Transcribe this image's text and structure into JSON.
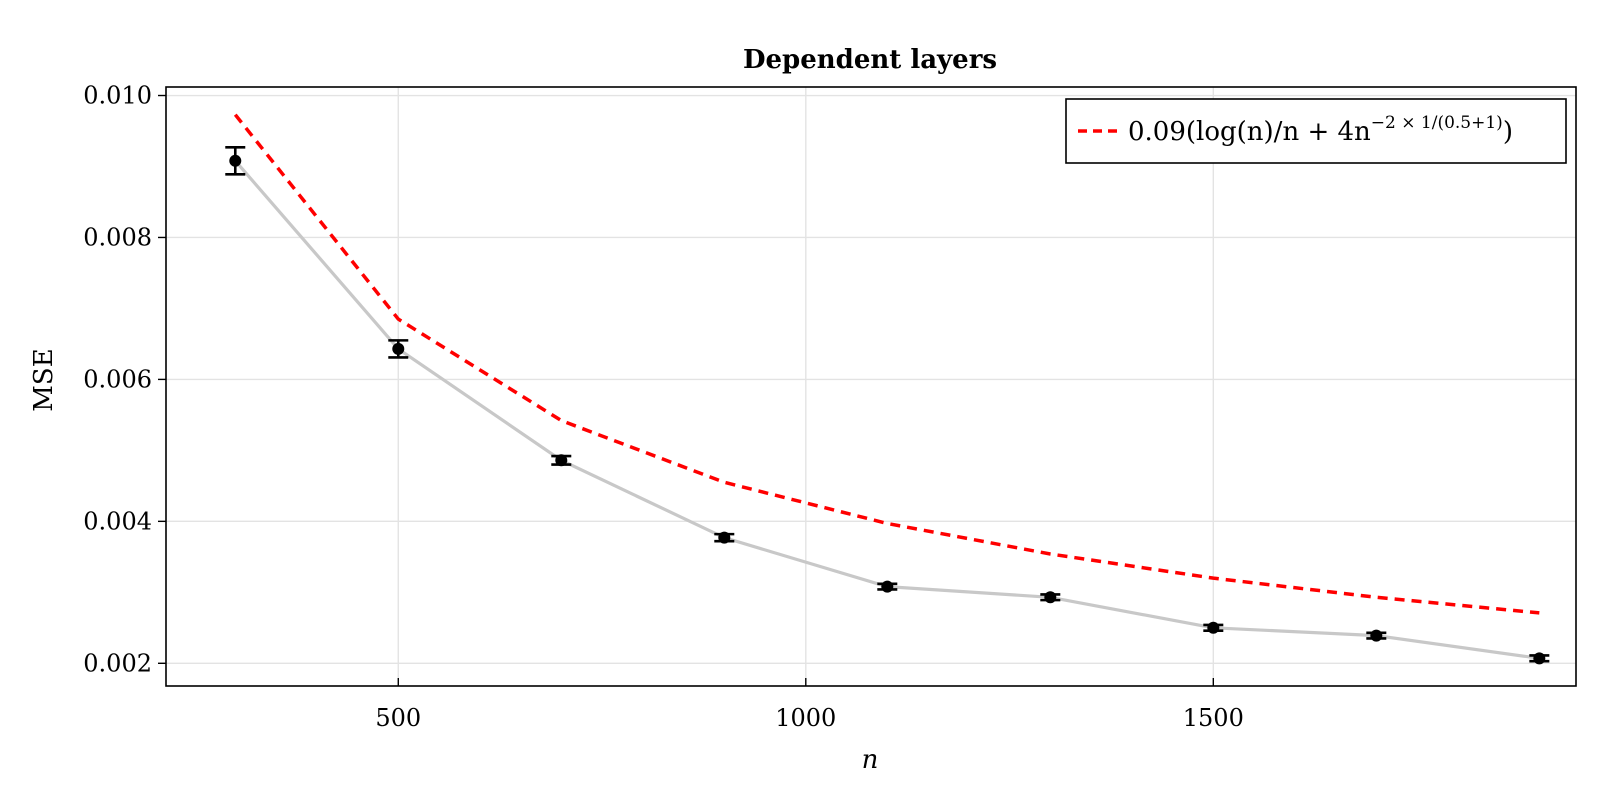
{
  "chart_data": {
    "type": "line",
    "title": "Dependent layers",
    "xlabel": "n",
    "ylabel": "MSE",
    "xlim": [
      215,
      1945
    ],
    "ylim": [
      0.00168,
      0.01012
    ],
    "xticks": [
      500,
      1000,
      1500
    ],
    "xtick_labels": [
      "500",
      "1000",
      "1500"
    ],
    "yticks": [
      0.002,
      0.004,
      0.006,
      0.008,
      0.01
    ],
    "ytick_labels": [
      "0.002",
      "0.004",
      "0.006",
      "0.008",
      "0.010"
    ],
    "grid": true,
    "legend_position": "top-right",
    "series": [
      {
        "kind": "errorbar-line",
        "color": "#c8c8c8",
        "marker_color": "#000000",
        "x": [
          300,
          500,
          700,
          900,
          1100,
          1300,
          1500,
          1700,
          1900
        ],
        "y": [
          0.00908,
          0.00643,
          0.00486,
          0.00377,
          0.00308,
          0.00293,
          0.0025,
          0.00239,
          0.00207
        ],
        "err": [
          0.00019,
          0.00012,
          6e-05,
          5e-05,
          4e-05,
          4e-05,
          4e-05,
          4e-05,
          4e-05
        ]
      },
      {
        "kind": "dashed-line",
        "name": "0.09(log(n)/n + 4n^(−2×1/(0.5+1)))",
        "color": "#ff0000",
        "x": [
          300,
          500,
          700,
          900,
          1100,
          1300,
          1500,
          1700,
          1900
        ],
        "y": [
          0.00973,
          0.00685,
          0.00542,
          0.00455,
          0.00397,
          0.00354,
          0.0032,
          0.00293,
          0.00271
        ]
      }
    ],
    "legend": {
      "prefix": "0.09",
      "body": "(log(n)/n + 4n",
      "exponent": "−2 × 1/(0.5+1)",
      "suffix": ")"
    }
  }
}
